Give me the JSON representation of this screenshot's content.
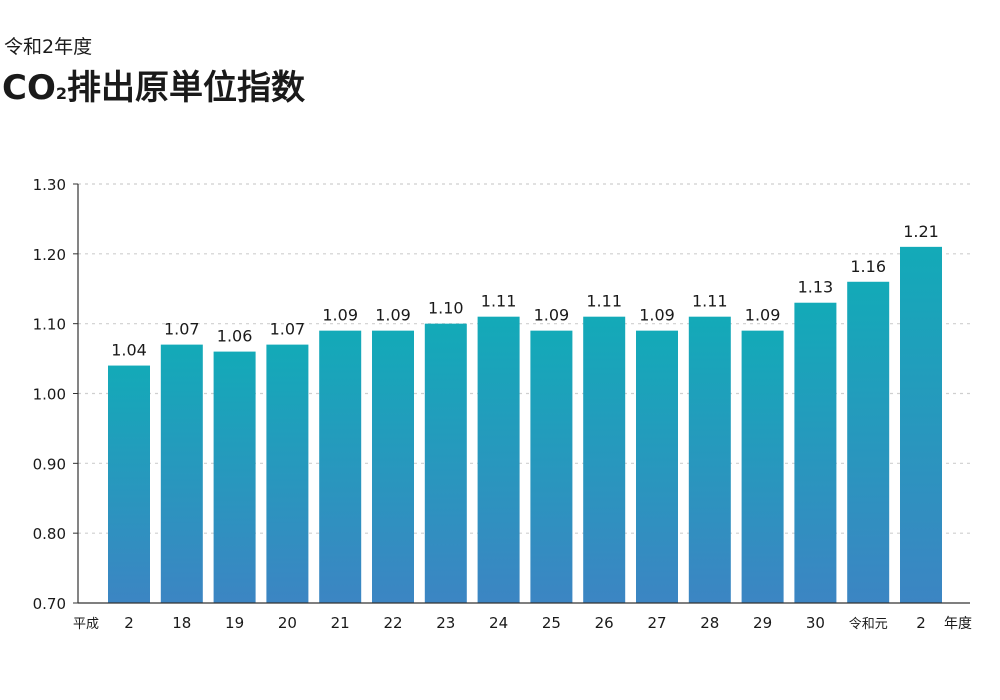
{
  "header": {
    "subtitle": "令和2年度",
    "title_prefix": "CO",
    "title_sub": "2",
    "title_suffix": "排出原単位指数"
  },
  "chart_data": {
    "type": "bar",
    "era_label_start": "平成",
    "unit_label": "年度",
    "categories": [
      "2",
      "18",
      "19",
      "20",
      "21",
      "22",
      "23",
      "24",
      "25",
      "26",
      "27",
      "28",
      "29",
      "30",
      "令和元",
      "2"
    ],
    "values": [
      1.04,
      1.07,
      1.06,
      1.07,
      1.09,
      1.09,
      1.1,
      1.11,
      1.09,
      1.11,
      1.09,
      1.11,
      1.09,
      1.13,
      1.16,
      1.21
    ],
    "value_labels": [
      "1.04",
      "1.07",
      "1.06",
      "1.07",
      "1.09",
      "1.09",
      "1.10",
      "1.11",
      "1.09",
      "1.11",
      "1.09",
      "1.11",
      "1.09",
      "1.13",
      "1.16",
      "1.21"
    ],
    "yticks": [
      0.7,
      0.8,
      0.9,
      1.0,
      1.1,
      1.2,
      1.3
    ],
    "ytick_labels": [
      "0.70",
      "0.80",
      "0.90",
      "1.00",
      "1.10",
      "1.20",
      "1.30"
    ],
    "ylim": [
      0.7,
      1.3
    ],
    "grid": true,
    "colors": {
      "bar_top": "#13aab8",
      "bar_bottom": "#3c85c3",
      "grid": "#cfcfcf",
      "axis": "#333333"
    }
  }
}
